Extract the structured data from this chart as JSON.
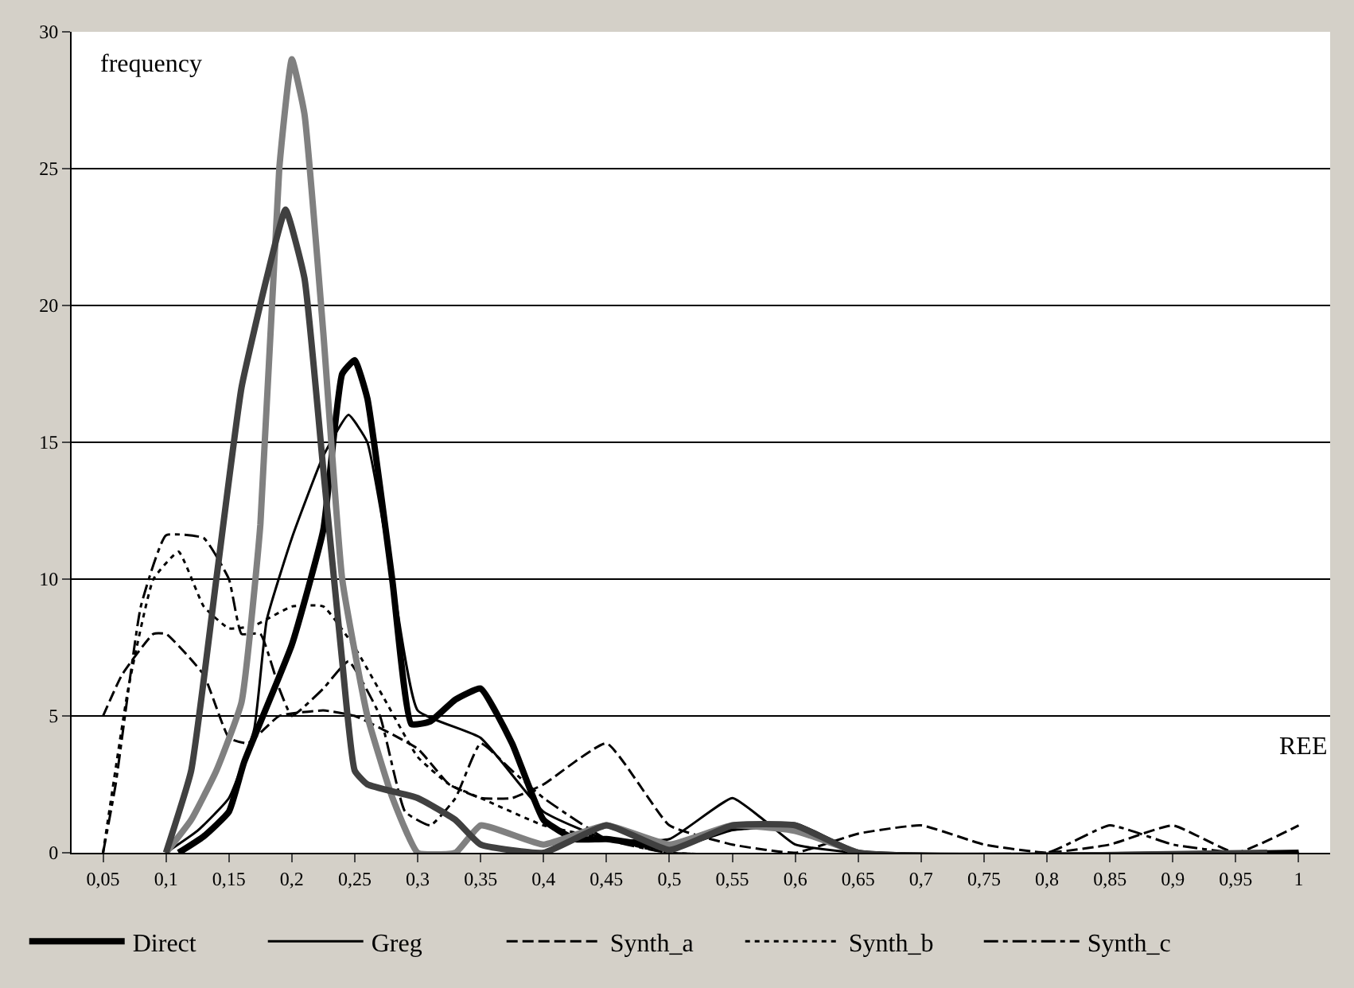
{
  "chart_data": {
    "type": "line",
    "xlabel": "REE",
    "ylabel": "frequency",
    "xlim": [
      0.025,
      1.025
    ],
    "ylim": [
      0,
      30
    ],
    "xticks": [
      {
        "value": 0.05,
        "label": "0,05"
      },
      {
        "value": 0.1,
        "label": "0,1"
      },
      {
        "value": 0.15,
        "label": "0,15"
      },
      {
        "value": 0.2,
        "label": "0,2"
      },
      {
        "value": 0.25,
        "label": "0,25"
      },
      {
        "value": 0.3,
        "label": "0,3"
      },
      {
        "value": 0.35,
        "label": "0,35"
      },
      {
        "value": 0.4,
        "label": "0,4"
      },
      {
        "value": 0.45,
        "label": "0,45"
      },
      {
        "value": 0.5,
        "label": "0,5"
      },
      {
        "value": 0.55,
        "label": "0,55"
      },
      {
        "value": 0.6,
        "label": "0,6"
      },
      {
        "value": 0.65,
        "label": "0,65"
      },
      {
        "value": 0.7,
        "label": "0,7"
      },
      {
        "value": 0.75,
        "label": "0,75"
      },
      {
        "value": 0.8,
        "label": "0,8"
      },
      {
        "value": 0.85,
        "label": "0,85"
      },
      {
        "value": 0.9,
        "label": "0,9"
      },
      {
        "value": 0.95,
        "label": "0,95"
      },
      {
        "value": 1,
        "label": "1"
      }
    ],
    "yticks": [
      0,
      5,
      10,
      15,
      20,
      25,
      30
    ],
    "grid": "y",
    "legend": "bottom",
    "series": [
      {
        "name": "Direct",
        "color": "#000000",
        "line_style": "solid",
        "x": [
          0.11,
          0.13,
          0.15,
          0.162,
          0.2,
          0.225,
          0.24,
          0.25,
          0.26,
          0.28,
          0.295,
          0.31,
          0.33,
          0.35,
          0.375,
          0.4,
          0.425,
          0.45,
          0.5,
          0.55,
          0.6,
          0.65,
          1
        ],
        "values": [
          0,
          0.6,
          1.5,
          3.3,
          7.6,
          11.8,
          17.5,
          18,
          16.6,
          9.9,
          4.7,
          4.8,
          5.6,
          6,
          4,
          1.2,
          0.5,
          0.5,
          0.2,
          0.9,
          1,
          0,
          0
        ]
      },
      {
        "name": "Greg",
        "color": "#000000",
        "line_style": "solid",
        "x": [
          0.1,
          0.125,
          0.15,
          0.17,
          0.18,
          0.2,
          0.225,
          0.245,
          0.26,
          0.28,
          0.3,
          0.35,
          0.4,
          0.45,
          0.5,
          0.55,
          0.575,
          0.6,
          0.65,
          1
        ],
        "values": [
          0,
          0.8,
          2,
          4.5,
          8.5,
          11.5,
          14.5,
          16,
          15,
          10,
          5.2,
          4.2,
          1.5,
          0.5,
          0.5,
          2,
          1.2,
          0.3,
          0,
          0
        ]
      },
      {
        "name": "Synth_a",
        "color": "#000000",
        "line_style": "dashed",
        "x": [
          0.05,
          0.065,
          0.09,
          0.1,
          0.13,
          0.15,
          0.165,
          0.19,
          0.225,
          0.25,
          0.3,
          0.325,
          0.35,
          0.375,
          0.4,
          0.45,
          0.5,
          0.55,
          0.6,
          0.65,
          0.7,
          0.75,
          0.8,
          0.85,
          0.9,
          0.95,
          1
        ],
        "values": [
          5,
          6.5,
          8,
          8,
          6.5,
          4.2,
          4,
          5,
          5.2,
          5,
          3.8,
          2.5,
          2,
          2,
          2.5,
          4,
          1,
          0.3,
          0,
          0.7,
          1,
          0.3,
          0,
          0.3,
          1,
          0,
          1
        ]
      },
      {
        "name": "Synth_b",
        "color": "#000000",
        "line_style": "dotted",
        "x": [
          0.05,
          0.07,
          0.09,
          0.11,
          0.13,
          0.15,
          0.17,
          0.2,
          0.225,
          0.25,
          0.275,
          0.3,
          0.325,
          0.35,
          0.4,
          0.45,
          0.5,
          1
        ],
        "values": [
          0,
          6,
          10,
          11,
          9,
          8.2,
          8.3,
          9,
          9,
          7.5,
          5.5,
          3.5,
          2.5,
          2,
          1,
          0.5,
          0,
          0
        ]
      },
      {
        "name": "Synth_c",
        "color": "#000000",
        "line_style": "dashdot",
        "x": [
          0.05,
          0.06,
          0.08,
          0.1,
          0.13,
          0.15,
          0.16,
          0.175,
          0.19,
          0.2,
          0.225,
          0.245,
          0.27,
          0.29,
          0.31,
          0.33,
          0.35,
          0.375,
          0.4,
          0.45,
          0.5,
          0.8,
          0.85,
          0.9,
          0.95,
          1
        ],
        "values": [
          0,
          2.5,
          9,
          11.6,
          11.5,
          10,
          8,
          8,
          6,
          5,
          6,
          7,
          5,
          1.5,
          1,
          2,
          4,
          3,
          2,
          0.5,
          0,
          0,
          1,
          0.3,
          0,
          0
        ]
      },
      {
        "color": "#808080",
        "line_style": "solid",
        "x": [
          0.1,
          0.12,
          0.14,
          0.16,
          0.175,
          0.19,
          0.2,
          0.21,
          0.225,
          0.24,
          0.26,
          0.28,
          0.3,
          0.33,
          0.35,
          0.4,
          0.45,
          0.5,
          0.55,
          0.6,
          0.65
        ],
        "values": [
          0,
          1.2,
          3,
          5.5,
          12,
          25,
          29,
          27,
          19,
          10,
          5,
          2,
          0,
          0,
          1,
          0.3,
          1,
          0.3,
          1,
          0.8,
          0
        ]
      },
      {
        "color": "#404040",
        "line_style": "solid",
        "x": [
          0.1,
          0.12,
          0.14,
          0.16,
          0.18,
          0.195,
          0.21,
          0.225,
          0.24,
          0.25,
          0.26,
          0.3,
          0.33,
          0.35,
          0.4,
          0.45,
          0.5,
          0.55,
          0.6,
          0.65,
          0.975
        ],
        "values": [
          0,
          3,
          10,
          17,
          21,
          23.5,
          21,
          14,
          7,
          3,
          2.5,
          2,
          1.2,
          0.3,
          0,
          1,
          0.1,
          1,
          1,
          0,
          0
        ]
      }
    ]
  }
}
